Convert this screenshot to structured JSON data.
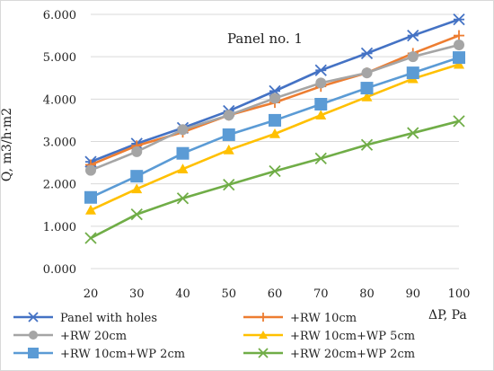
{
  "chart_data": {
    "type": "line",
    "annotation": "Panel no. 1",
    "ylabel": "Q, m3/h·m2",
    "xlabel": "ΔP, Pa",
    "x": [
      20,
      30,
      40,
      50,
      60,
      70,
      80,
      90,
      100
    ],
    "xlim": [
      20,
      100
    ],
    "ylim": [
      0,
      6
    ],
    "y_ticks": [
      "0.000",
      "1.000",
      "2.000",
      "3.000",
      "4.000",
      "5.000",
      "6.000"
    ],
    "x_ticks": [
      "20",
      "30",
      "40",
      "50",
      "60",
      "70",
      "80",
      "90",
      "100"
    ],
    "grid": "horizontal",
    "legend_position": "bottom",
    "series": [
      {
        "name": "Panel with holes",
        "color": "#4472C4",
        "marker": "asterisk",
        "values": [
          2.52,
          2.95,
          3.32,
          3.72,
          4.19,
          4.68,
          5.08,
          5.5,
          5.88
        ]
      },
      {
        "name": "+RW 10cm",
        "color": "#ED7D31",
        "marker": "plus",
        "values": [
          2.45,
          2.9,
          3.22,
          3.62,
          3.92,
          4.3,
          4.62,
          5.08,
          5.5
        ]
      },
      {
        "name": "+RW 20cm",
        "color": "#A5A5A5",
        "marker": "circle",
        "values": [
          2.32,
          2.76,
          3.28,
          3.62,
          4.02,
          4.38,
          4.62,
          5.0,
          5.28
        ]
      },
      {
        "name": "+RW 10cm+WP 5cm",
        "color": "#FFC000",
        "marker": "triangle",
        "values": [
          1.38,
          1.88,
          2.35,
          2.8,
          3.18,
          3.62,
          4.05,
          4.48,
          4.82
        ]
      },
      {
        "name": "+RW 10cm+WP 2cm",
        "color": "#5B9BD5",
        "marker": "square",
        "values": [
          1.68,
          2.18,
          2.72,
          3.16,
          3.5,
          3.88,
          4.26,
          4.62,
          4.98
        ]
      },
      {
        "name": "+RW 20cm+WP 2cm",
        "color": "#70AD47",
        "marker": "x",
        "values": [
          0.72,
          1.28,
          1.66,
          1.98,
          2.3,
          2.6,
          2.92,
          3.2,
          3.48
        ]
      }
    ]
  }
}
